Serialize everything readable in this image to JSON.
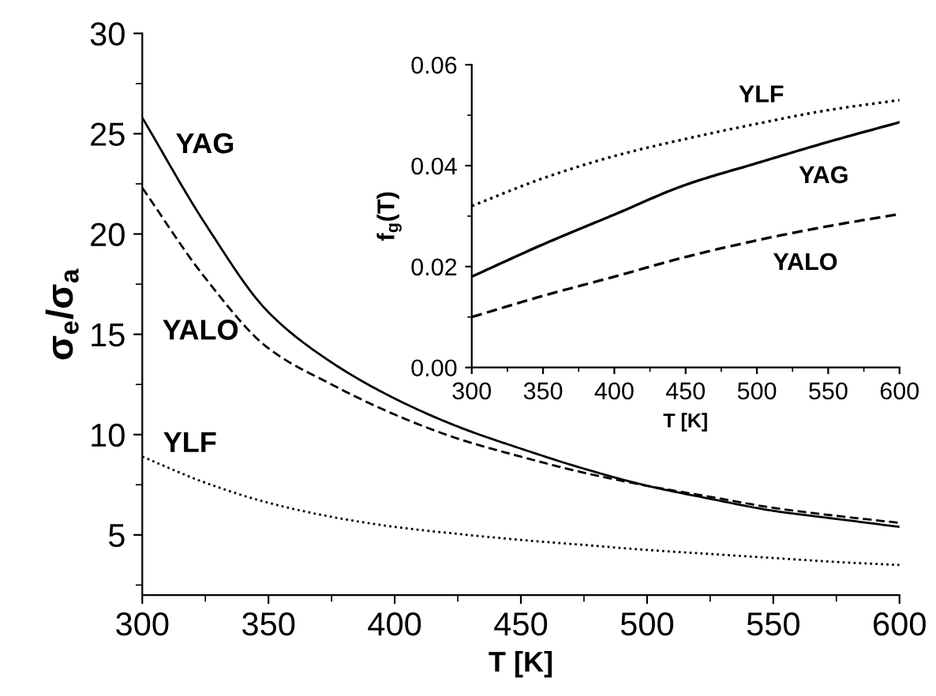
{
  "chart_data": [
    {
      "type": "line",
      "xlabel": "T [K]",
      "ylabel": "σ$_{e}$/σ$_{a}$",
      "x": [
        300,
        325,
        350,
        375,
        400,
        425,
        450,
        475,
        500,
        525,
        550,
        575,
        600
      ],
      "series": [
        {
          "name": "YAG",
          "color": "#000000",
          "line_style": "solid",
          "values": [
            25.8,
            20.5,
            16.1,
            13.6,
            11.8,
            10.4,
            9.3,
            8.3,
            7.45,
            6.8,
            6.2,
            5.8,
            5.4
          ]
        },
        {
          "name": "YALO",
          "color": "#000000",
          "line_style": "dashed",
          "values": [
            22.3,
            17.8,
            14.3,
            12.5,
            11.0,
            9.8,
            8.9,
            8.1,
            7.45,
            6.9,
            6.35,
            5.95,
            5.6
          ]
        },
        {
          "name": "YLF",
          "color": "#000000",
          "line_style": "dotted",
          "values": [
            8.9,
            7.6,
            6.6,
            5.9,
            5.4,
            5.05,
            4.75,
            4.5,
            4.25,
            4.05,
            3.85,
            3.65,
            3.5
          ]
        }
      ],
      "xlim": [
        300,
        600
      ],
      "xticks": [
        300,
        350,
        400,
        450,
        500,
        550,
        600
      ],
      "ylim": [
        2,
        30
      ],
      "yticks": [
        5,
        10,
        15,
        20,
        25,
        30
      ],
      "grid": false,
      "legend": false
    },
    {
      "type": "line",
      "xlabel": "T [K]",
      "ylabel": "f$_{g}$(T)",
      "x": [
        300,
        350,
        400,
        450,
        500,
        550,
        600
      ],
      "series": [
        {
          "name": "YLF",
          "color": "#000000",
          "line_style": "dotted",
          "values": [
            0.032,
            0.0375,
            0.0419,
            0.0453,
            0.0483,
            0.051,
            0.053
          ]
        },
        {
          "name": "YAG",
          "color": "#000000",
          "line_style": "solid",
          "values": [
            0.018,
            0.0244,
            0.0303,
            0.0362,
            0.0405,
            0.0447,
            0.0486
          ]
        },
        {
          "name": "YALO",
          "color": "#000000",
          "line_style": "dashed",
          "values": [
            0.01,
            0.0142,
            0.018,
            0.0219,
            0.0252,
            0.028,
            0.0304
          ]
        }
      ],
      "xlim": [
        300,
        600
      ],
      "xticks": [
        300,
        350,
        400,
        450,
        500,
        550,
        600
      ],
      "ylim": [
        0,
        0.06
      ],
      "yticks": [
        {
          "value": 0,
          "label": "0.00"
        },
        {
          "value": 0.02,
          "label": "0.02"
        },
        {
          "value": 0.04,
          "label": "0.04"
        },
        {
          "value": 0.06,
          "label": "0.06"
        }
      ],
      "grid": false,
      "legend": false
    }
  ]
}
